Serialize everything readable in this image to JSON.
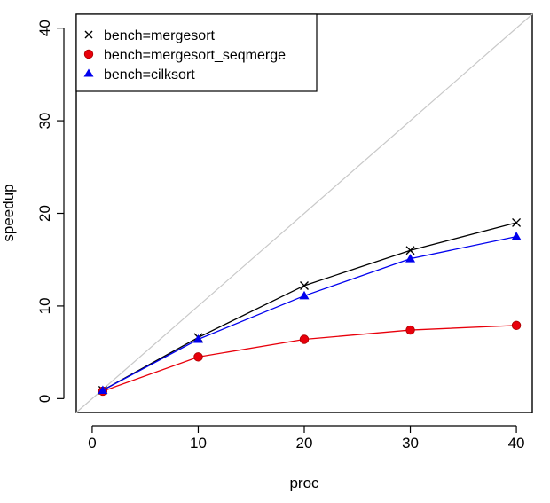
{
  "chart_data": {
    "type": "line",
    "xlabel": "proc",
    "ylabel": "speedup",
    "xlim": [
      -1.5,
      41.5
    ],
    "ylim": [
      -1.5,
      41.5
    ],
    "xticks": [
      0,
      10,
      20,
      30,
      40
    ],
    "yticks": [
      0,
      10,
      20,
      30,
      40
    ],
    "grid": false,
    "legend_position": "top-left",
    "reference_line": {
      "type": "identity",
      "color": "#c8c8c8"
    },
    "series": [
      {
        "name": "bench=mergesort",
        "marker": "x",
        "color": "#000000",
        "x": [
          1,
          10,
          20,
          30,
          40
        ],
        "y": [
          0.9,
          6.6,
          12.2,
          16.0,
          19.0
        ]
      },
      {
        "name": "bench=mergesort_seqmerge",
        "marker": "circle",
        "color": "#e8000b",
        "x": [
          1,
          10,
          20,
          30,
          40
        ],
        "y": [
          0.8,
          4.5,
          6.4,
          7.4,
          7.9
        ]
      },
      {
        "name": "bench=cilksort",
        "marker": "triangle",
        "color": "#0000ee",
        "x": [
          1,
          10,
          20,
          30,
          40
        ],
        "y": [
          0.9,
          6.4,
          11.1,
          15.1,
          17.5
        ]
      }
    ]
  }
}
